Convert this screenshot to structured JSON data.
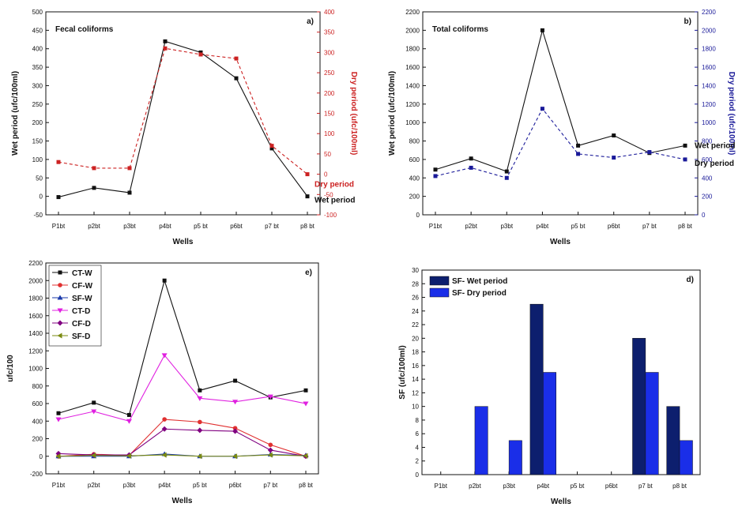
{
  "chart_data": [
    {
      "type": "line",
      "panel_label": "a)",
      "inner_title": "Fecal coliforms",
      "categories": [
        "P1bt",
        "p2bt",
        "p3bt",
        "p4bt",
        "p5 bt",
        "p6bt",
        "p7 bt",
        "p8 bt"
      ],
      "xlabel": "Wells",
      "ylabel": "Wet period (ufc/100ml)",
      "y2label": "Dry period (ufc/100ml)",
      "ylim": [
        -50,
        500
      ],
      "y2lim": [
        -100,
        400
      ],
      "yticks": [
        "-50",
        "0",
        "50",
        "100",
        "150",
        "200",
        "250",
        "300",
        "350",
        "400",
        "450",
        "500"
      ],
      "y2ticks": [
        "-100",
        "-50",
        "0",
        "50",
        "100",
        "150",
        "200",
        "250",
        "300",
        "350",
        "400"
      ],
      "y2_color": "#cc2222",
      "series": [
        {
          "name": "Wet period",
          "axis": "left",
          "style": "solid",
          "color": "#111111",
          "values": [
            -2,
            23,
            10,
            420,
            390,
            320,
            130,
            0
          ]
        },
        {
          "name": "Dry period",
          "axis": "right",
          "style": "dashed",
          "color": "#cc2222",
          "values": [
            30,
            15,
            15,
            310,
            295,
            285,
            70,
            0
          ]
        }
      ]
    },
    {
      "type": "line",
      "panel_label": "b)",
      "inner_title": "Total coliforms",
      "categories": [
        "P1bt",
        "p2bt",
        "p3bt",
        "p4bt",
        "p5 bt",
        "p6bt",
        "p7 bt",
        "p8 bt"
      ],
      "xlabel": "Wells",
      "ylabel": "Wet period (ufc/100ml)",
      "y2label": "Dry period (ufc/100ml)",
      "ylim": [
        0,
        2200
      ],
      "y2lim": [
        0,
        2200
      ],
      "yticks": [
        "0",
        "200",
        "400",
        "600",
        "800",
        "1000",
        "1200",
        "1400",
        "1600",
        "1800",
        "2000",
        "2200"
      ],
      "y2ticks": [
        "0",
        "200",
        "400",
        "600",
        "800",
        "1000",
        "1200",
        "1400",
        "1600",
        "1800",
        "2000",
        "2200"
      ],
      "y2_color": "#1a1a99",
      "series": [
        {
          "name": "Wet period",
          "axis": "left",
          "style": "solid",
          "color": "#111111",
          "values": [
            490,
            610,
            470,
            2000,
            750,
            860,
            670,
            750
          ]
        },
        {
          "name": "Dry period",
          "axis": "right",
          "style": "dashed",
          "color": "#1a1a99",
          "values": [
            420,
            510,
            400,
            1150,
            660,
            620,
            680,
            600
          ]
        }
      ]
    },
    {
      "type": "line",
      "panel_label": "e)",
      "categories": [
        "P1bt",
        "p2bt",
        "p3bt",
        "p4bt",
        "p5 bt",
        "p6bt",
        "p7 bt",
        "p8 bt"
      ],
      "xlabel": "Wells",
      "ylabel": "ufc/100",
      "ylim": [
        -200,
        2200
      ],
      "yticks": [
        "-200",
        "0",
        "200",
        "400",
        "600",
        "800",
        "1000",
        "1200",
        "1400",
        "1600",
        "1800",
        "2000",
        "2200"
      ],
      "legend_position": "top-left",
      "series": [
        {
          "name": "CT-W",
          "color": "#111111",
          "marker": "square",
          "values": [
            490,
            610,
            470,
            2000,
            750,
            860,
            670,
            750
          ]
        },
        {
          "name": "CF-W",
          "color": "#e03030",
          "marker": "circle",
          "values": [
            -2,
            23,
            10,
            420,
            390,
            320,
            130,
            0
          ]
        },
        {
          "name": "SF-W",
          "color": "#1a3aaa",
          "marker": "triangle-up",
          "values": [
            0,
            0,
            0,
            25,
            0,
            0,
            20,
            10
          ]
        },
        {
          "name": "CT-D",
          "color": "#e020e0",
          "marker": "triangle-down",
          "values": [
            420,
            510,
            400,
            1150,
            660,
            620,
            680,
            600
          ]
        },
        {
          "name": "CF-D",
          "color": "#800080",
          "marker": "diamond",
          "values": [
            30,
            15,
            15,
            310,
            295,
            285,
            70,
            0
          ]
        },
        {
          "name": "SF-D",
          "color": "#7a8a10",
          "marker": "triangle-left",
          "values": [
            0,
            10,
            5,
            15,
            0,
            0,
            15,
            5
          ]
        }
      ]
    },
    {
      "type": "bar",
      "panel_label": "d)",
      "categories": [
        "P1bt",
        "p2bt",
        "p3bt",
        "p4bt",
        "p5 bt",
        "p6bt",
        "p7 bt",
        "p8 bt"
      ],
      "xlabel": "Wells",
      "ylabel": "SF (ufc/100ml)",
      "ylim": [
        0,
        30
      ],
      "yticks": [
        "0",
        "2",
        "4",
        "6",
        "8",
        "10",
        "12",
        "14",
        "16",
        "18",
        "20",
        "22",
        "24",
        "26",
        "28",
        "30"
      ],
      "legend_position": "top-left",
      "series": [
        {
          "name": "SF- Wet period",
          "color": "#0d1f6e",
          "values": [
            0,
            0,
            0,
            25,
            0,
            0,
            20,
            10
          ]
        },
        {
          "name": "SF- Dry period",
          "color": "#1a2ee8",
          "values": [
            0,
            10,
            5,
            15,
            0,
            0,
            15,
            5
          ]
        }
      ]
    }
  ]
}
